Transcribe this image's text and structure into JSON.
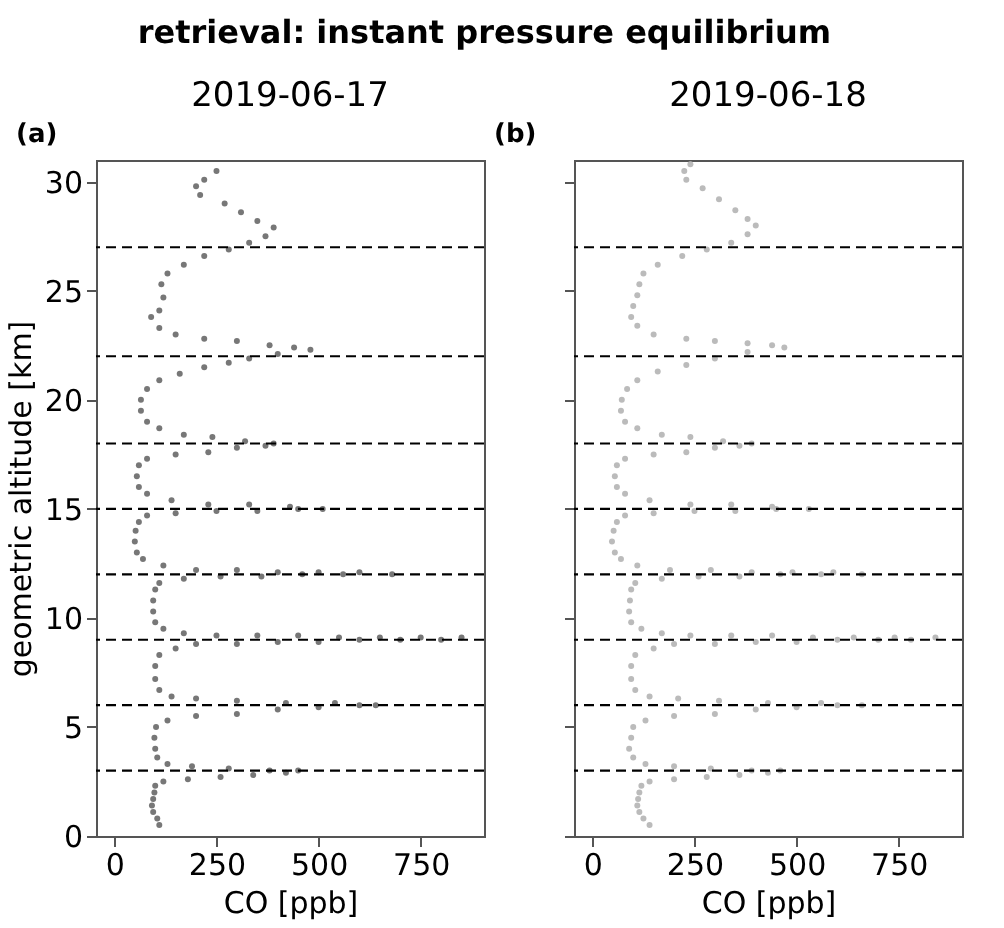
{
  "chart_data": [
    {
      "type": "scatter",
      "title": "retrieval: instant pressure equilibrium",
      "subtitle": "2019-06-17",
      "xlabel": "CO [ppb]",
      "ylabel": "geometric altitude [km]",
      "annotations": [
        "(a)"
      ],
      "xlim": [
        -45,
        905
      ],
      "ylim": [
        0,
        31
      ],
      "xticks": [
        0,
        250,
        500,
        750
      ],
      "yticks": [
        0,
        5,
        10,
        15,
        20,
        25,
        30
      ],
      "grid": false,
      "marker": "circle",
      "ref_lines": [
        {
          "axis": "y",
          "value": 3,
          "color": "#000000",
          "line_style": "dashed"
        },
        {
          "axis": "y",
          "value": 6,
          "color": "#000000",
          "line_style": "dashed"
        },
        {
          "axis": "y",
          "value": 9,
          "color": "#000000",
          "line_style": "dashed"
        },
        {
          "axis": "y",
          "value": 12,
          "color": "#000000",
          "line_style": "dashed"
        },
        {
          "axis": "y",
          "value": 15,
          "color": "#000000",
          "line_style": "dashed"
        },
        {
          "axis": "y",
          "value": 18,
          "color": "#000000",
          "line_style": "dashed"
        },
        {
          "axis": "y",
          "value": 22,
          "color": "#000000",
          "line_style": "dashed"
        },
        {
          "axis": "y",
          "value": 27,
          "color": "#000000",
          "line_style": "dashed"
        }
      ],
      "series": [
        {
          "color": "#777777",
          "x": [
            110,
            105,
            95,
            92,
            95,
            98,
            100,
            120,
            180,
            260,
            340,
            420,
            450,
            380,
            280,
            190,
            130,
            105,
            100,
            98,
            102,
            130,
            200,
            300,
            400,
            500,
            600,
            640,
            540,
            420,
            300,
            200,
            140,
            110,
            100,
            100,
            110,
            150,
            200,
            300,
            400,
            500,
            600,
            700,
            800,
            850,
            750,
            650,
            550,
            450,
            350,
            250,
            170,
            120,
            100,
            95,
            95,
            100,
            110,
            170,
            260,
            360,
            460,
            560,
            680,
            600,
            500,
            400,
            300,
            200,
            120,
            70,
            55,
            50,
            52,
            60,
            80,
            150,
            250,
            350,
            450,
            510,
            430,
            330,
            230,
            140,
            80,
            60,
            55,
            60,
            80,
            150,
            230,
            300,
            370,
            390,
            320,
            240,
            170,
            110,
            80,
            65,
            65,
            80,
            110,
            160,
            220,
            280,
            330,
            400,
            480,
            440,
            380,
            300,
            220,
            150,
            110,
            90,
            110,
            120,
            115,
            130,
            170,
            220,
            280,
            330,
            370,
            390,
            350,
            310,
            270,
            210,
            200,
            220,
            250
          ],
          "values": [
            0.5,
            0.8,
            1.1,
            1.4,
            1.7,
            2.0,
            2.3,
            2.5,
            2.6,
            2.7,
            2.8,
            2.9,
            3.0,
            3.0,
            3.1,
            3.2,
            3.3,
            3.6,
            4.0,
            4.5,
            5.0,
            5.3,
            5.5,
            5.6,
            5.8,
            5.9,
            6.0,
            6.0,
            6.1,
            6.1,
            6.2,
            6.3,
            6.4,
            6.7,
            7.2,
            7.8,
            8.3,
            8.6,
            8.8,
            8.8,
            8.9,
            8.9,
            9.0,
            9.0,
            9.0,
            9.1,
            9.1,
            9.1,
            9.1,
            9.2,
            9.2,
            9.2,
            9.3,
            9.5,
            9.8,
            10.3,
            10.8,
            11.3,
            11.6,
            11.8,
            11.9,
            11.9,
            12.0,
            12.0,
            12.0,
            12.1,
            12.1,
            12.1,
            12.2,
            12.2,
            12.4,
            12.7,
            13.0,
            13.5,
            14.0,
            14.4,
            14.7,
            14.8,
            14.9,
            14.9,
            15.0,
            15.0,
            15.1,
            15.2,
            15.2,
            15.4,
            15.7,
            16.0,
            16.5,
            17.0,
            17.3,
            17.5,
            17.6,
            17.8,
            17.9,
            18.0,
            18.1,
            18.3,
            18.4,
            18.7,
            19.0,
            19.5,
            20.0,
            20.5,
            20.9,
            21.2,
            21.5,
            21.7,
            21.9,
            22.1,
            22.3,
            22.4,
            22.5,
            22.7,
            22.8,
            23.0,
            23.3,
            23.8,
            24.1,
            24.7,
            25.3,
            25.8,
            26.2,
            26.6,
            26.9,
            27.2,
            27.5,
            27.9,
            28.2,
            28.6,
            29.0,
            29.4,
            29.8,
            30.1,
            30.5
          ]
        }
      ]
    },
    {
      "type": "scatter",
      "subtitle": "2019-06-18",
      "xlabel": "CO [ppb]",
      "annotations": [
        "(b)"
      ],
      "xlim": [
        -45,
        905
      ],
      "ylim": [
        0,
        31
      ],
      "xticks": [
        0,
        250,
        500,
        750
      ],
      "yticks": [
        0,
        5,
        10,
        15,
        20,
        25,
        30
      ],
      "tick_labels": "x",
      "grid": false,
      "marker": "circle",
      "ref_lines": [
        {
          "axis": "y",
          "value": 3,
          "color": "#000000",
          "line_style": "dashed"
        },
        {
          "axis": "y",
          "value": 6,
          "color": "#000000",
          "line_style": "dashed"
        },
        {
          "axis": "y",
          "value": 9,
          "color": "#000000",
          "line_style": "dashed"
        },
        {
          "axis": "y",
          "value": 12,
          "color": "#000000",
          "line_style": "dashed"
        },
        {
          "axis": "y",
          "value": 15,
          "color": "#000000",
          "line_style": "dashed"
        },
        {
          "axis": "y",
          "value": 18,
          "color": "#000000",
          "line_style": "dashed"
        },
        {
          "axis": "y",
          "value": 22,
          "color": "#000000",
          "line_style": "dashed"
        },
        {
          "axis": "y",
          "value": 27,
          "color": "#000000",
          "line_style": "dashed"
        }
      ],
      "series": [
        {
          "color": "#bbbbbb",
          "x": [
            140,
            125,
            115,
            110,
            112,
            115,
            120,
            140,
            200,
            280,
            360,
            430,
            460,
            390,
            290,
            200,
            130,
            100,
            90,
            95,
            100,
            130,
            200,
            300,
            400,
            500,
            600,
            660,
            560,
            430,
            310,
            210,
            140,
            105,
            95,
            95,
            105,
            150,
            200,
            300,
            400,
            500,
            600,
            700,
            780,
            840,
            740,
            640,
            540,
            440,
            340,
            240,
            170,
            120,
            95,
            90,
            92,
            95,
            105,
            170,
            260,
            360,
            460,
            560,
            660,
            590,
            490,
            390,
            290,
            190,
            110,
            70,
            55,
            48,
            52,
            60,
            80,
            150,
            250,
            350,
            450,
            530,
            440,
            340,
            240,
            140,
            80,
            60,
            55,
            60,
            80,
            150,
            230,
            300,
            360,
            390,
            320,
            240,
            170,
            110,
            80,
            70,
            72,
            85,
            110,
            160,
            230,
            300,
            380,
            470,
            440,
            380,
            300,
            230,
            150,
            110,
            95,
            100,
            110,
            115,
            125,
            160,
            220,
            280,
            340,
            380,
            400,
            380,
            350,
            310,
            270,
            230,
            225,
            240
          ],
          "values": [
            0.5,
            0.8,
            1.1,
            1.4,
            1.7,
            2.0,
            2.3,
            2.5,
            2.6,
            2.7,
            2.8,
            2.9,
            3.0,
            3.0,
            3.1,
            3.2,
            3.3,
            3.6,
            4.0,
            4.5,
            5.0,
            5.3,
            5.5,
            5.6,
            5.8,
            5.9,
            6.0,
            6.0,
            6.1,
            6.1,
            6.2,
            6.3,
            6.4,
            6.7,
            7.2,
            7.8,
            8.3,
            8.6,
            8.8,
            8.8,
            8.9,
            8.9,
            9.0,
            9.0,
            9.0,
            9.1,
            9.1,
            9.1,
            9.1,
            9.2,
            9.2,
            9.2,
            9.3,
            9.5,
            9.8,
            10.3,
            10.8,
            11.3,
            11.6,
            11.8,
            11.9,
            11.9,
            12.0,
            12.0,
            12.0,
            12.1,
            12.1,
            12.1,
            12.2,
            12.2,
            12.4,
            12.7,
            13.0,
            13.5,
            14.0,
            14.4,
            14.7,
            14.8,
            14.9,
            14.9,
            15.0,
            15.0,
            15.1,
            15.2,
            15.2,
            15.4,
            15.7,
            16.0,
            16.5,
            17.0,
            17.3,
            17.5,
            17.6,
            17.8,
            17.9,
            18.0,
            18.1,
            18.3,
            18.4,
            18.7,
            19.0,
            19.5,
            20.0,
            20.5,
            20.9,
            21.3,
            21.6,
            21.9,
            22.2,
            22.4,
            22.5,
            22.6,
            22.7,
            22.8,
            23.0,
            23.4,
            23.8,
            24.3,
            24.8,
            25.3,
            25.8,
            26.2,
            26.6,
            26.9,
            27.2,
            27.6,
            28.0,
            28.3,
            28.7,
            29.2,
            29.7,
            30.1,
            30.5,
            30.8
          ]
        }
      ]
    }
  ]
}
